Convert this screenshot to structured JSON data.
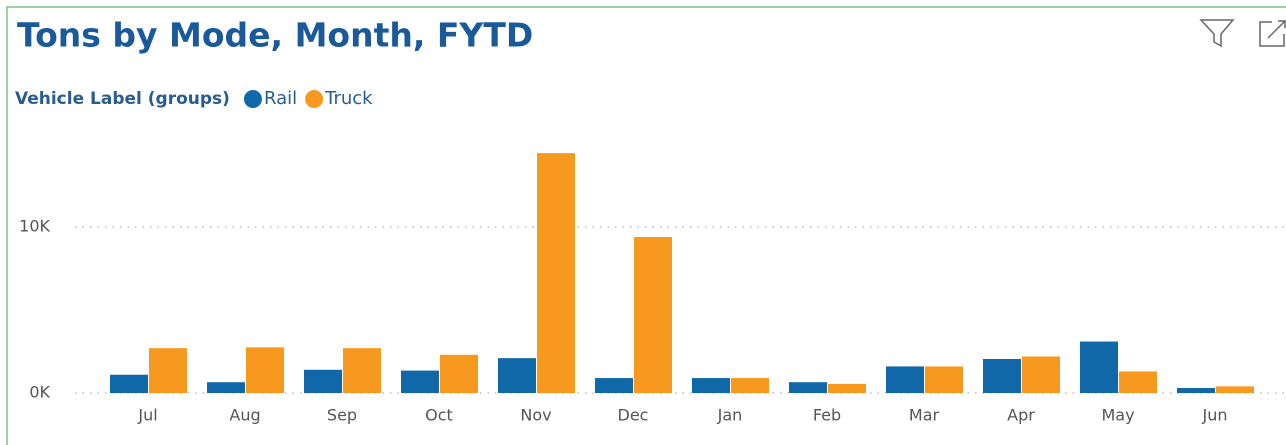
{
  "chart_data": {
    "type": "bar",
    "title": "Tons by Mode, Month, FYTD",
    "legend_title": "Vehicle Label (groups)",
    "categories": [
      "Jul",
      "Aug",
      "Sep",
      "Oct",
      "Nov",
      "Dec",
      "Jan",
      "Feb",
      "Mar",
      "Apr",
      "May",
      "Jun"
    ],
    "series": [
      {
        "name": "Rail",
        "color": "#1068a8",
        "values": [
          1100,
          650,
          1400,
          1350,
          2100,
          900,
          900,
          650,
          1600,
          2050,
          3100,
          300
        ]
      },
      {
        "name": "Truck",
        "color": "#f7981f",
        "values": [
          2700,
          2750,
          2700,
          2300,
          14450,
          9400,
          900,
          550,
          1600,
          2200,
          1300,
          400
        ]
      }
    ],
    "ylim": [
      0,
      16000
    ],
    "yticks": [
      {
        "value": 0,
        "label": "0K"
      },
      {
        "value": 10000,
        "label": "10K"
      }
    ],
    "grid": true
  }
}
